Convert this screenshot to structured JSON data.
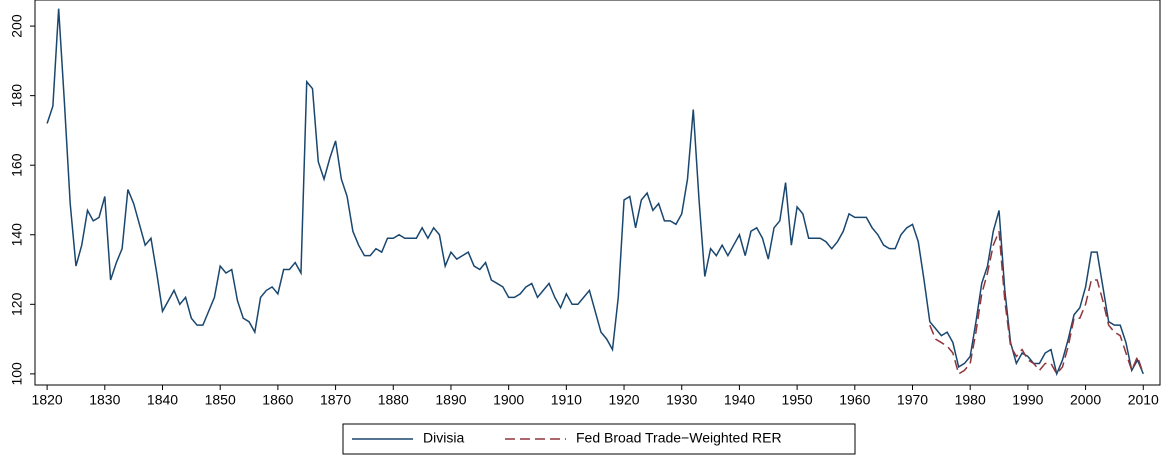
{
  "chart_data": {
    "type": "line",
    "xlim": [
      1817.9,
      2012.9
    ],
    "ylim": [
      96.8,
      207.5
    ],
    "xticks": [
      1820,
      1830,
      1840,
      1850,
      1860,
      1870,
      1880,
      1890,
      1900,
      1910,
      1920,
      1930,
      1940,
      1950,
      1960,
      1970,
      1980,
      1990,
      2000,
      2010
    ],
    "yticks": [
      100,
      120,
      140,
      160,
      180,
      200
    ],
    "grid": false,
    "legend": "bottom",
    "series": [
      {
        "name": "Divisia",
        "color": "#1a476f",
        "dash": "solid",
        "x": [
          1820,
          1821,
          1822,
          1823,
          1824,
          1825,
          1826,
          1827,
          1828,
          1829,
          1830,
          1831,
          1832,
          1833,
          1834,
          1835,
          1836,
          1837,
          1838,
          1839,
          1840,
          1841,
          1842,
          1843,
          1844,
          1845,
          1846,
          1847,
          1848,
          1849,
          1850,
          1851,
          1852,
          1853,
          1854,
          1855,
          1856,
          1857,
          1858,
          1859,
          1860,
          1861,
          1862,
          1863,
          1864,
          1865,
          1866,
          1867,
          1868,
          1869,
          1870,
          1871,
          1872,
          1873,
          1874,
          1875,
          1876,
          1877,
          1878,
          1879,
          1880,
          1881,
          1882,
          1883,
          1884,
          1885,
          1886,
          1887,
          1888,
          1889,
          1890,
          1891,
          1892,
          1893,
          1894,
          1895,
          1896,
          1897,
          1898,
          1899,
          1900,
          1901,
          1902,
          1903,
          1904,
          1905,
          1906,
          1907,
          1908,
          1909,
          1910,
          1911,
          1912,
          1913,
          1914,
          1915,
          1916,
          1917,
          1918,
          1919,
          1920,
          1921,
          1922,
          1923,
          1924,
          1925,
          1926,
          1927,
          1928,
          1929,
          1930,
          1931,
          1932,
          1933,
          1934,
          1935,
          1936,
          1937,
          1938,
          1939,
          1940,
          1941,
          1942,
          1943,
          1944,
          1945,
          1946,
          1947,
          1948,
          1949,
          1950,
          1951,
          1952,
          1953,
          1954,
          1955,
          1956,
          1957,
          1958,
          1959,
          1960,
          1961,
          1962,
          1963,
          1964,
          1965,
          1966,
          1967,
          1968,
          1969,
          1970,
          1971,
          1972,
          1973,
          1974,
          1975,
          1976,
          1977,
          1978,
          1979,
          1980,
          1981,
          1982,
          1983,
          1984,
          1985,
          1986,
          1987,
          1988,
          1989,
          1990,
          1991,
          1992,
          1993,
          1994,
          1995,
          1996,
          1997,
          1998,
          1999,
          2000,
          2001,
          2002,
          2003,
          2004,
          2005,
          2006,
          2007,
          2008,
          2009,
          2010
        ],
        "values": [
          172,
          177,
          205,
          178,
          149,
          131,
          137,
          147,
          144,
          145,
          151,
          127,
          132,
          136,
          153,
          149,
          143,
          137,
          139,
          129,
          118,
          121,
          124,
          120,
          122,
          116,
          114,
          114,
          118,
          122,
          131,
          129,
          130,
          121,
          116,
          115,
          112,
          122,
          124,
          125,
          123,
          130,
          130,
          132,
          129,
          184,
          182,
          161,
          156,
          162,
          167,
          156,
          151,
          141,
          137,
          134,
          134,
          136,
          135,
          139,
          139,
          140,
          139,
          139,
          139,
          142,
          139,
          142,
          140,
          131,
          135,
          133,
          134,
          135,
          131,
          130,
          132,
          127,
          126,
          125,
          122,
          122,
          123,
          125,
          126,
          122,
          124,
          126,
          122,
          119,
          123,
          120,
          120,
          122,
          124,
          118,
          112,
          110,
          107,
          122,
          150,
          151,
          142,
          150,
          152,
          147,
          149,
          144,
          144,
          143,
          146,
          156,
          176,
          150,
          128,
          136,
          134,
          137,
          134,
          137,
          140,
          134,
          141,
          142,
          139,
          133,
          142,
          144,
          155,
          137,
          148,
          146,
          139,
          139,
          139,
          138,
          136,
          138,
          141,
          146,
          145,
          145,
          145,
          142,
          140,
          137,
          136,
          136,
          140,
          142,
          143,
          138,
          127,
          115,
          113,
          111,
          112,
          109,
          102,
          103,
          105,
          115,
          126,
          131,
          141,
          147,
          124,
          109,
          103,
          106,
          105,
          103,
          103,
          106,
          107,
          100,
          104,
          110,
          117,
          119,
          125,
          135,
          135,
          125,
          115,
          114,
          114,
          109,
          101,
          104,
          100
        ]
      },
      {
        "name": "Fed Broad Trade−Weighted RER",
        "color": "#90353b",
        "dash": "dashed",
        "x": [
          1973,
          1974,
          1975,
          1976,
          1977,
          1978,
          1979,
          1980,
          1981,
          1982,
          1983,
          1984,
          1985,
          1986,
          1987,
          1988,
          1989,
          1990,
          1991,
          1992,
          1993,
          1994,
          1995,
          1996,
          1997,
          1998,
          1999,
          2000,
          2001,
          2002,
          2003,
          2004,
          2005,
          2006,
          2007,
          2008,
          2009,
          2010
        ],
        "values": [
          114,
          110,
          109,
          108,
          106,
          100,
          101,
          103,
          112,
          123,
          129,
          137,
          141,
          121,
          108,
          105,
          107,
          104,
          103,
          101,
          103,
          103,
          100,
          102,
          108,
          116,
          116,
          120,
          127,
          127,
          121,
          114,
          112,
          111,
          106,
          101,
          105,
          100
        ]
      }
    ]
  }
}
